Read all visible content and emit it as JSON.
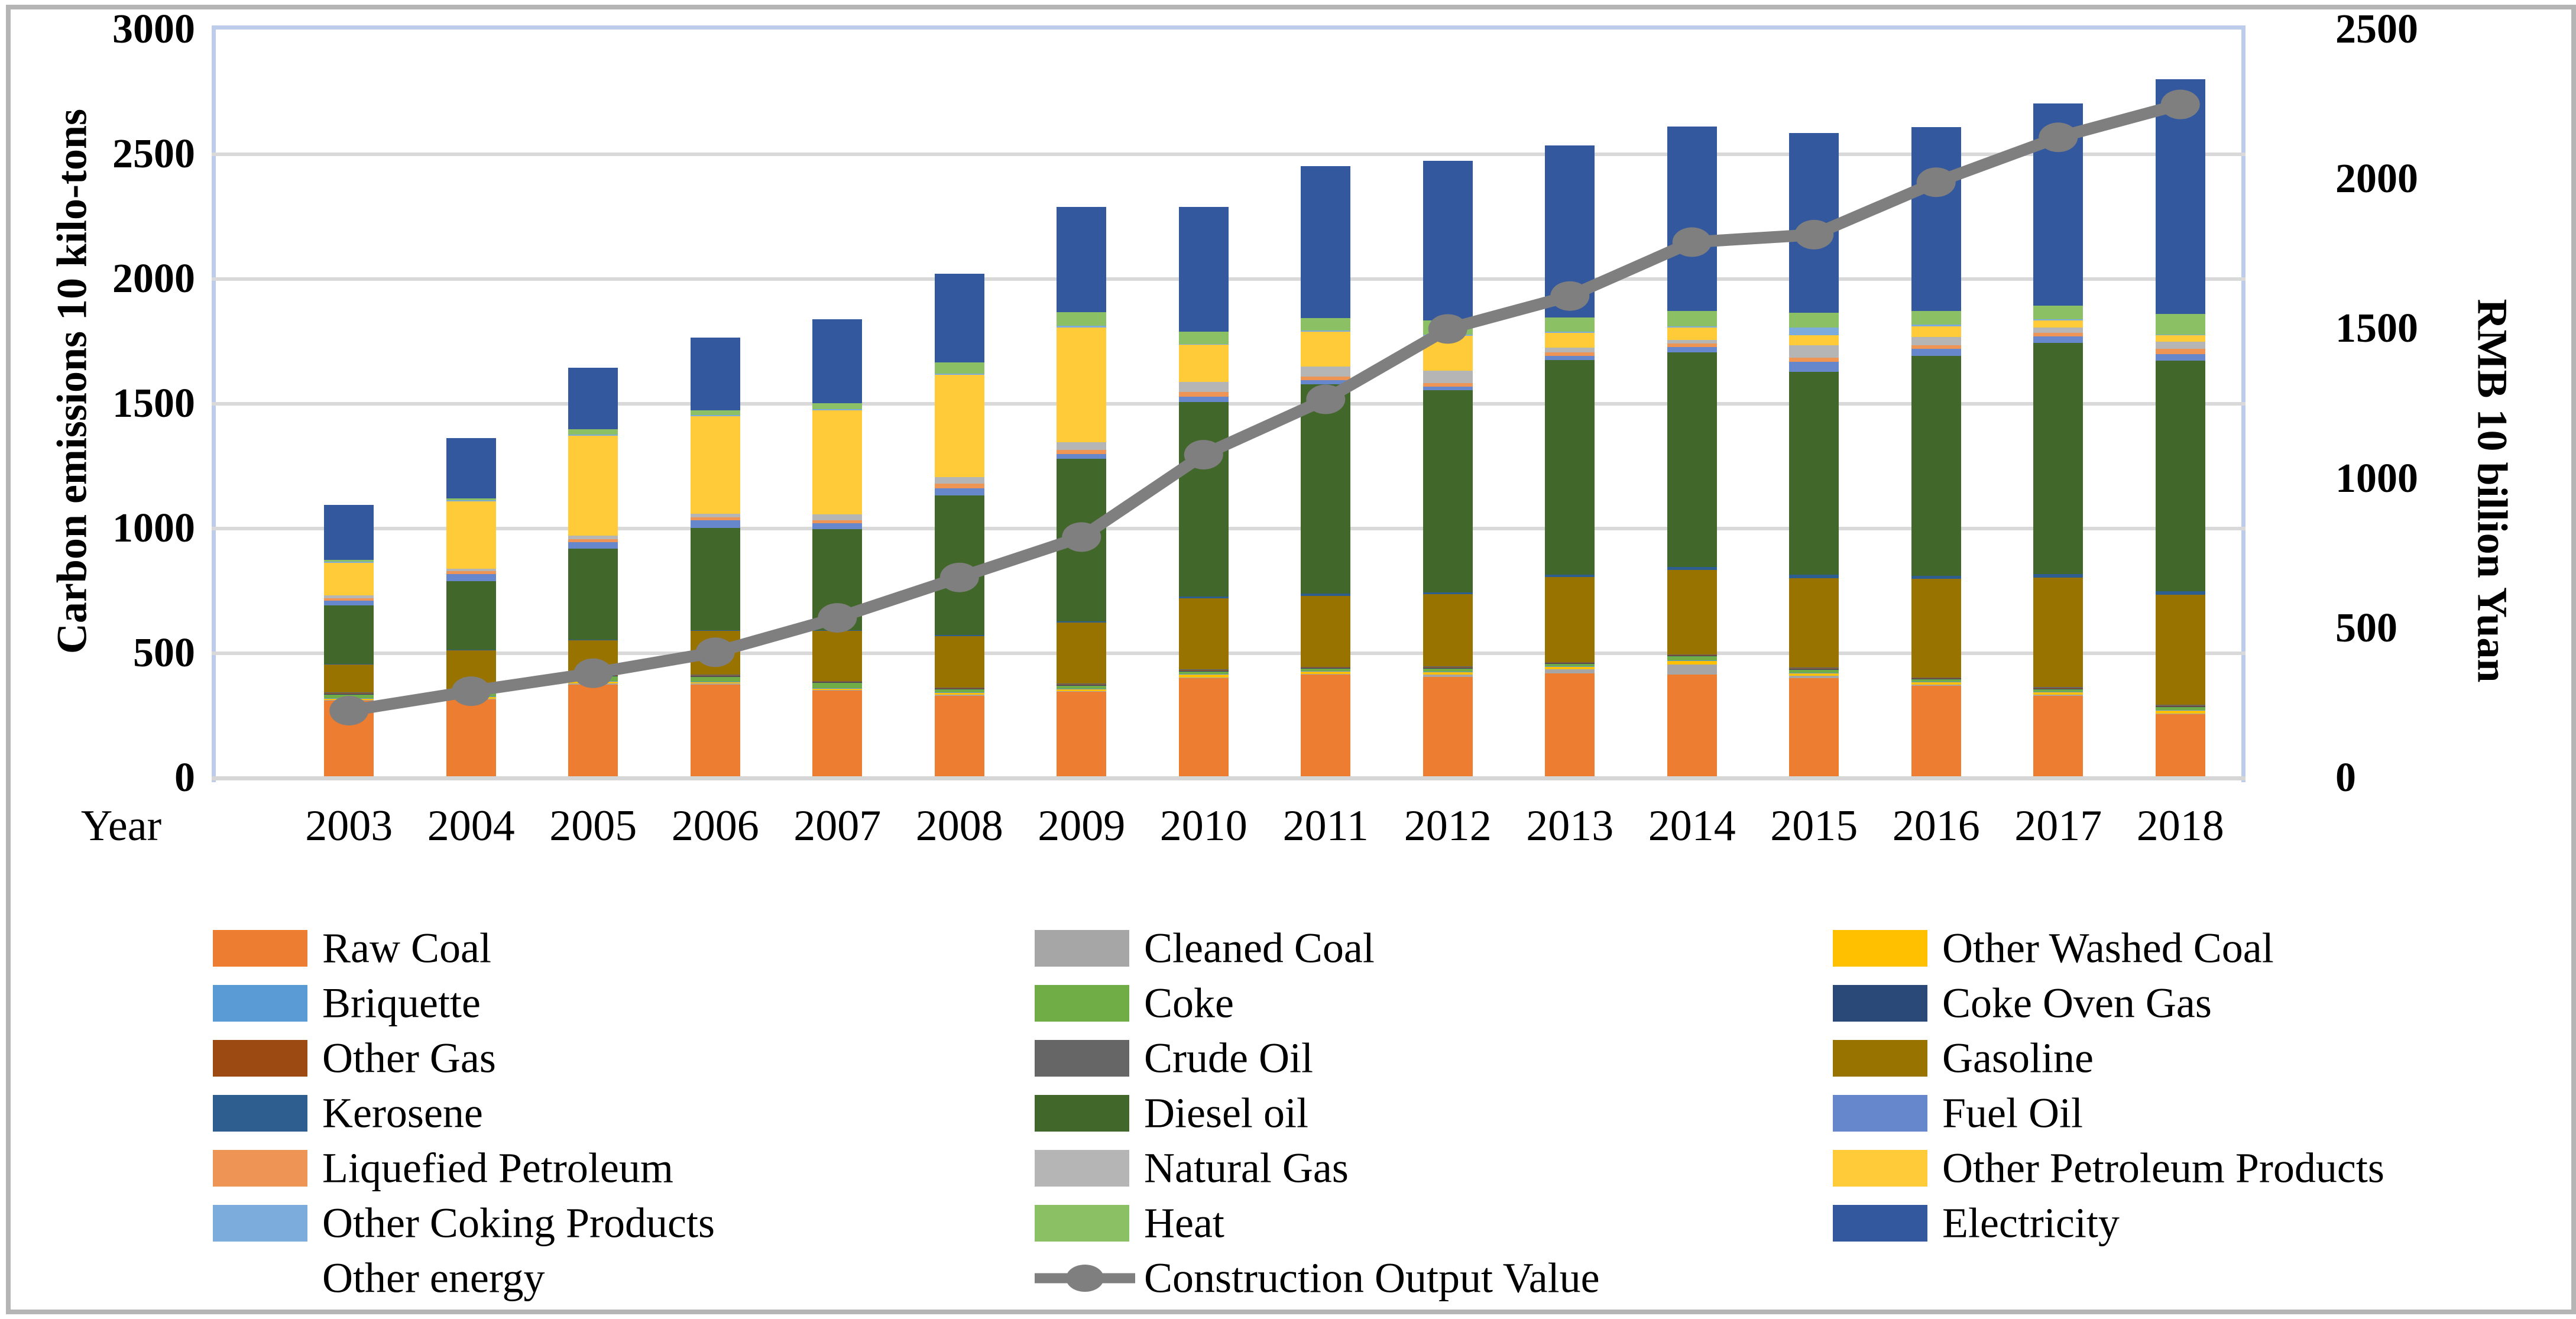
{
  "chart_data": {
    "type": "bar",
    "subtype": "stacked-bar-with-line",
    "title": "",
    "categories": [
      "2003",
      "2004",
      "2005",
      "2006",
      "2007",
      "2008",
      "2009",
      "2010",
      "2011",
      "2012",
      "2013",
      "2014",
      "2015",
      "2016",
      "2017",
      "2018"
    ],
    "x_axis": {
      "label": "Year"
    },
    "left_axis": {
      "title": "Carbon emissions 10 kilo-tons",
      "min": 0,
      "max": 3000,
      "tick_step": 500,
      "ticks": [
        3000,
        2500,
        2000,
        1500,
        1000,
        500,
        0
      ]
    },
    "right_axis": {
      "title": "RMB 10 billion Yuan",
      "min": 0,
      "max": 2500,
      "tick_step": 500,
      "ticks": [
        2500,
        2000,
        1500,
        1000,
        500,
        0
      ]
    },
    "grid": "horizontal",
    "legend_position": "bottom",
    "series": [
      {
        "name": "Raw Coal",
        "color": "#ED7D31",
        "values": [
          310,
          315,
          375,
          375,
          350,
          330,
          345,
          400,
          415,
          405,
          420,
          415,
          400,
          370,
          330,
          255
        ]
      },
      {
        "name": "Cleaned Coal",
        "color": "#A6A6A6",
        "values": [
          3,
          3,
          3,
          3,
          3,
          3,
          3,
          3,
          3,
          10,
          15,
          40,
          10,
          4,
          4,
          4
        ]
      },
      {
        "name": "Other Washed Coal",
        "color": "#FFC000",
        "values": [
          5,
          6,
          8,
          6,
          6,
          8,
          8,
          12,
          8,
          10,
          10,
          14,
          10,
          10,
          10,
          12
        ]
      },
      {
        "name": "Briquette",
        "color": "#5B9BD5",
        "values": [
          2,
          2,
          2,
          2,
          2,
          2,
          2,
          2,
          2,
          2,
          2,
          2,
          2,
          2,
          2,
          2
        ]
      },
      {
        "name": "Coke",
        "color": "#70AD47",
        "values": [
          15,
          18,
          20,
          20,
          20,
          12,
          12,
          10,
          10,
          12,
          10,
          16,
          12,
          10,
          10,
          12
        ]
      },
      {
        "name": "Coke Oven Gas",
        "color": "#2A4878",
        "values": [
          3,
          3,
          3,
          3,
          3,
          3,
          3,
          3,
          3,
          3,
          3,
          3,
          3,
          3,
          3,
          3
        ]
      },
      {
        "name": "Other Gas",
        "color": "#9C4A11",
        "values": [
          2,
          2,
          2,
          2,
          2,
          2,
          2,
          2,
          2,
          2,
          2,
          2,
          2,
          2,
          2,
          2
        ]
      },
      {
        "name": "Crude Oil",
        "color": "#666666",
        "values": [
          3,
          3,
          3,
          3,
          3,
          3,
          3,
          3,
          3,
          3,
          3,
          3,
          3,
          3,
          3,
          3
        ]
      },
      {
        "name": "Gasoline",
        "color": "#997300",
        "values": [
          112,
          160,
          135,
          175,
          200,
          205,
          245,
          285,
          285,
          290,
          340,
          340,
          360,
          395,
          440,
          442
        ]
      },
      {
        "name": "Kerosene",
        "color": "#2D5E8F",
        "values": [
          3,
          3,
          4,
          4,
          4,
          5,
          6,
          8,
          8,
          8,
          10,
          10,
          12,
          12,
          14,
          14
        ]
      },
      {
        "name": "Diesel oil",
        "color": "#42672B",
        "values": [
          233,
          275,
          365,
          410,
          405,
          560,
          650,
          780,
          840,
          810,
          860,
          860,
          815,
          880,
          925,
          925
        ]
      },
      {
        "name": "Fuel Oil",
        "color": "#6787CC",
        "values": [
          19,
          28,
          25,
          30,
          24,
          28,
          20,
          20,
          15,
          14,
          16,
          22,
          40,
          30,
          28,
          24
        ]
      },
      {
        "name": "Liquefied Petroleum",
        "color": "#EE9455",
        "values": [
          10,
          12,
          12,
          12,
          12,
          18,
          16,
          20,
          15,
          14,
          14,
          14,
          16,
          14,
          14,
          22
        ]
      },
      {
        "name": "Natural Gas",
        "color": "#B5B5B5",
        "values": [
          12,
          8,
          15,
          15,
          24,
          28,
          30,
          40,
          40,
          50,
          20,
          14,
          50,
          32,
          20,
          28
        ]
      },
      {
        "name": "Other Petroleum Products",
        "color": "#FFCB38",
        "values": [
          130,
          272,
          400,
          390,
          415,
          410,
          460,
          148,
          140,
          140,
          60,
          50,
          40,
          44,
          30,
          26
        ]
      },
      {
        "name": "Other Coking Products",
        "color": "#7CACDC",
        "values": [
          5,
          4,
          5,
          5,
          5,
          5,
          8,
          4,
          4,
          5,
          5,
          6,
          30,
          6,
          5,
          4
        ]
      },
      {
        "name": "Heat",
        "color": "#8BC164",
        "values": [
          8,
          8,
          20,
          20,
          25,
          45,
          55,
          50,
          50,
          55,
          55,
          60,
          60,
          56,
          54,
          82
        ]
      },
      {
        "name": "Electricity",
        "color": "#33589D",
        "values": [
          220,
          240,
          248,
          290,
          335,
          355,
          420,
          500,
          610,
          640,
          690,
          740,
          720,
          735,
          810,
          940
        ]
      },
      {
        "name": "Other energy",
        "color": "#FFFFFF",
        "values": [
          0,
          0,
          0,
          0,
          0,
          0,
          0,
          0,
          0,
          0,
          0,
          0,
          0,
          0,
          0,
          0
        ]
      }
    ],
    "line_series": {
      "name": "Construction Output Value",
      "axis": "right",
      "color": "#7F7F7F",
      "values": [
        225,
        290,
        350,
        420,
        535,
        670,
        805,
        1080,
        1265,
        1500,
        1610,
        1790,
        1815,
        1990,
        2140,
        2250
      ]
    },
    "legend": {
      "rows": [
        [
          {
            "label": "Raw Coal",
            "symbol": "swatch",
            "color": "#ED7D31"
          },
          {
            "label": "Cleaned Coal",
            "symbol": "swatch",
            "color": "#A6A6A6"
          },
          {
            "label": "Other Washed Coal",
            "symbol": "swatch",
            "color": "#FFC000"
          }
        ],
        [
          {
            "label": "Briquette",
            "symbol": "swatch",
            "color": "#5B9BD5"
          },
          {
            "label": "Coke",
            "symbol": "swatch",
            "color": "#70AD47"
          },
          {
            "label": "Coke Oven Gas",
            "symbol": "swatch",
            "color": "#2A4878"
          }
        ],
        [
          {
            "label": "Other Gas",
            "symbol": "swatch",
            "color": "#9C4A11"
          },
          {
            "label": "Crude Oil",
            "symbol": "swatch",
            "color": "#666666"
          },
          {
            "label": "Gasoline",
            "symbol": "swatch",
            "color": "#997300"
          }
        ],
        [
          {
            "label": "Kerosene",
            "symbol": "swatch",
            "color": "#2D5E8F"
          },
          {
            "label": "Diesel oil",
            "symbol": "swatch",
            "color": "#42672B"
          },
          {
            "label": "Fuel Oil",
            "symbol": "swatch",
            "color": "#6787CC"
          }
        ],
        [
          {
            "label": "Liquefied Petroleum",
            "symbol": "swatch",
            "color": "#EE9455"
          },
          {
            "label": "Natural Gas",
            "symbol": "swatch",
            "color": "#B5B5B5"
          },
          {
            "label": "Other Petroleum Products",
            "symbol": "swatch",
            "color": "#FFCB38"
          }
        ],
        [
          {
            "label": "Other Coking Products",
            "symbol": "swatch",
            "color": "#7CACDC"
          },
          {
            "label": "Heat",
            "symbol": "swatch",
            "color": "#8BC164"
          },
          {
            "label": "Electricity",
            "symbol": "swatch",
            "color": "#33589D"
          }
        ],
        [
          {
            "label": "Other energy",
            "symbol": "none",
            "color": "#FFFFFF"
          },
          {
            "label": "Construction Output Value",
            "symbol": "line",
            "color": "#7F7F7F"
          },
          null
        ]
      ]
    }
  }
}
